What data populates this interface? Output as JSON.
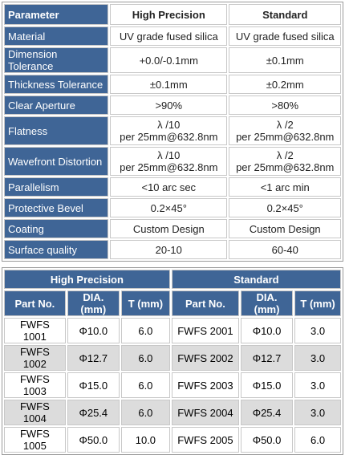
{
  "spec": {
    "header": {
      "parameter": "Parameter",
      "high": "High Precision",
      "standard": "Standard"
    },
    "rows": [
      {
        "label": "Material",
        "high": "UV grade fused silica",
        "standard": "UV grade fused silica"
      },
      {
        "label": "Dimension Tolerance",
        "high": "+0.0/-0.1mm",
        "standard": "±0.1mm"
      },
      {
        "label": "Thickness Tolerance",
        "high": "±0.1mm",
        "standard": "±0.2mm"
      },
      {
        "label": "Clear Aperture",
        "high": ">90%",
        "standard": ">80%"
      },
      {
        "label": "Flatness",
        "high": "λ /10",
        "high2": "per 25mm@632.8nm",
        "standard": "λ /2",
        "standard2": "per 25mm@632.8nm"
      },
      {
        "label": "Wavefront Distortion",
        "high": "λ /10",
        "high2": "per 25mm@632.8nm",
        "standard": "λ /2",
        "standard2": "per 25mm@632.8nm"
      },
      {
        "label": "Parallelism",
        "high": "<10 arc sec",
        "standard": "<1 arc min"
      },
      {
        "label": "Protective Bevel",
        "high": "0.2×45°",
        "standard": "0.2×45°"
      },
      {
        "label": "Coating",
        "high": "Custom Design",
        "standard": "Custom Design"
      },
      {
        "label": "Surface quality",
        "high": "20-10",
        "standard": "60-40"
      }
    ]
  },
  "parts": {
    "group_high": "High Precision",
    "group_standard": "Standard",
    "columns": [
      "Part No.",
      "DIA.(mm)",
      "T (mm)",
      "Part No.",
      "DIA.(mm)",
      "T (mm)"
    ],
    "rows": [
      [
        "FWFS 1001",
        "Φ10.0",
        "6.0",
        "FWFS 2001",
        "Φ10.0",
        "3.0"
      ],
      [
        "FWFS 1002",
        "Φ12.7",
        "6.0",
        "FWFS 2002",
        "Φ12.7",
        "3.0"
      ],
      [
        "FWFS 1003",
        "Φ15.0",
        "6.0",
        "FWFS 2003",
        "Φ15.0",
        "3.0"
      ],
      [
        "FWFS 1004",
        "Φ25.4",
        "6.0",
        "FWFS 2004",
        "Φ25.4",
        "3.0"
      ],
      [
        "FWFS 1005",
        "Φ50.0",
        "10.0",
        "FWFS 2005",
        "Φ50.0",
        "6.0"
      ]
    ]
  }
}
